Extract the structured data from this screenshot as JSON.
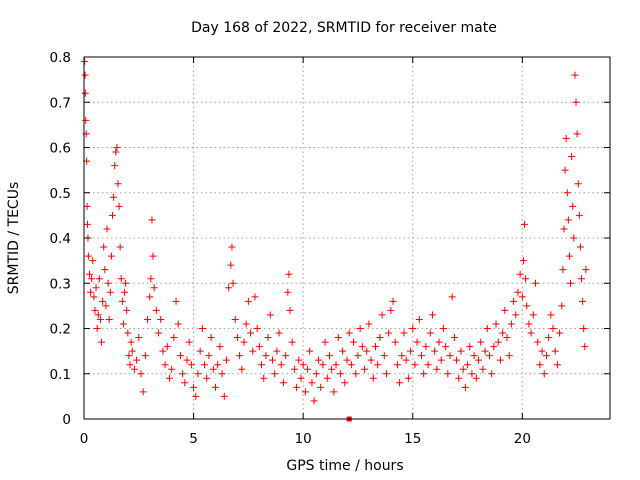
{
  "chart_data": {
    "type": "scatter",
    "title": "Day 168 of 2022, SRMTID for receiver mate",
    "xlabel": "GPS time / hours",
    "ylabel": "SRMTID / TECUs",
    "xlim": [
      0,
      24
    ],
    "ylim": [
      0,
      0.8
    ],
    "xticks": [
      0,
      5,
      10,
      15,
      20
    ],
    "yticks": [
      0,
      0.1,
      0.2,
      0.3,
      0.4,
      0.5,
      0.6,
      0.7,
      0.8
    ],
    "xtick_labels": [
      "0",
      "5",
      "10",
      "15",
      "20"
    ],
    "ytick_labels": [
      "0",
      "0.1",
      "0.2",
      "0.3",
      "0.4",
      "0.5",
      "0.6",
      "0.7",
      "0.8"
    ],
    "grid": true,
    "marker": "+",
    "color": "#ff0000",
    "series": [
      {
        "name": "SRMTID",
        "points": [
          [
            0.03,
            0.79
          ],
          [
            0.05,
            0.76
          ],
          [
            0.06,
            0.72
          ],
          [
            0.08,
            0.66
          ],
          [
            0.1,
            0.63
          ],
          [
            0.12,
            0.57
          ],
          [
            0.14,
            0.47
          ],
          [
            0.16,
            0.43
          ],
          [
            0.18,
            0.4
          ],
          [
            0.2,
            0.36
          ],
          [
            0.25,
            0.32
          ],
          [
            0.3,
            0.28
          ],
          [
            0.35,
            0.31
          ],
          [
            0.4,
            0.35
          ],
          [
            0.45,
            0.27
          ],
          [
            0.5,
            0.24
          ],
          [
            0.55,
            0.29
          ],
          [
            0.6,
            0.2
          ],
          [
            0.65,
            0.23
          ],
          [
            0.7,
            0.31
          ],
          [
            0.75,
            0.22
          ],
          [
            0.8,
            0.17
          ],
          [
            0.85,
            0.26
          ],
          [
            0.9,
            0.38
          ],
          [
            0.95,
            0.33
          ],
          [
            1.0,
            0.25
          ],
          [
            1.05,
            0.42
          ],
          [
            1.1,
            0.3
          ],
          [
            1.15,
            0.22
          ],
          [
            1.2,
            0.28
          ],
          [
            1.25,
            0.36
          ],
          [
            1.3,
            0.45
          ],
          [
            1.35,
            0.49
          ],
          [
            1.4,
            0.56
          ],
          [
            1.45,
            0.59
          ],
          [
            1.5,
            0.6
          ],
          [
            1.55,
            0.52
          ],
          [
            1.6,
            0.47
          ],
          [
            1.65,
            0.38
          ],
          [
            1.7,
            0.31
          ],
          [
            1.75,
            0.26
          ],
          [
            1.8,
            0.21
          ],
          [
            1.85,
            0.28
          ],
          [
            1.9,
            0.3
          ],
          [
            1.95,
            0.24
          ],
          [
            2.0,
            0.19
          ],
          [
            2.05,
            0.14
          ],
          [
            2.1,
            0.12
          ],
          [
            2.15,
            0.17
          ],
          [
            2.2,
            0.15
          ],
          [
            2.3,
            0.11
          ],
          [
            2.4,
            0.13
          ],
          [
            2.5,
            0.18
          ],
          [
            2.6,
            0.1
          ],
          [
            2.7,
            0.06
          ],
          [
            2.8,
            0.14
          ],
          [
            2.9,
            0.22
          ],
          [
            3.0,
            0.27
          ],
          [
            3.05,
            0.31
          ],
          [
            3.1,
            0.44
          ],
          [
            3.15,
            0.36
          ],
          [
            3.2,
            0.29
          ],
          [
            3.3,
            0.24
          ],
          [
            3.4,
            0.19
          ],
          [
            3.5,
            0.22
          ],
          [
            3.6,
            0.15
          ],
          [
            3.7,
            0.12
          ],
          [
            3.8,
            0.16
          ],
          [
            3.9,
            0.09
          ],
          [
            4.0,
            0.11
          ],
          [
            4.1,
            0.18
          ],
          [
            4.2,
            0.26
          ],
          [
            4.3,
            0.21
          ],
          [
            4.4,
            0.14
          ],
          [
            4.5,
            0.1
          ],
          [
            4.6,
            0.08
          ],
          [
            4.7,
            0.13
          ],
          [
            4.8,
            0.17
          ],
          [
            4.9,
            0.12
          ],
          [
            5.0,
            0.07
          ],
          [
            5.1,
            0.05
          ],
          [
            5.2,
            0.1
          ],
          [
            5.3,
            0.15
          ],
          [
            5.4,
            0.2
          ],
          [
            5.5,
            0.12
          ],
          [
            5.6,
            0.09
          ],
          [
            5.7,
            0.14
          ],
          [
            5.8,
            0.18
          ],
          [
            5.9,
            0.11
          ],
          [
            6.0,
            0.07
          ],
          [
            6.1,
            0.12
          ],
          [
            6.2,
            0.16
          ],
          [
            6.3,
            0.1
          ],
          [
            6.4,
            0.05
          ],
          [
            6.5,
            0.13
          ],
          [
            6.6,
            0.29
          ],
          [
            6.7,
            0.34
          ],
          [
            6.75,
            0.38
          ],
          [
            6.8,
            0.3
          ],
          [
            6.9,
            0.22
          ],
          [
            7.0,
            0.18
          ],
          [
            7.1,
            0.14
          ],
          [
            7.2,
            0.11
          ],
          [
            7.3,
            0.17
          ],
          [
            7.4,
            0.21
          ],
          [
            7.5,
            0.26
          ],
          [
            7.6,
            0.19
          ],
          [
            7.7,
            0.15
          ],
          [
            7.8,
            0.27
          ],
          [
            7.9,
            0.2
          ],
          [
            8.0,
            0.16
          ],
          [
            8.1,
            0.12
          ],
          [
            8.2,
            0.09
          ],
          [
            8.3,
            0.14
          ],
          [
            8.4,
            0.18
          ],
          [
            8.5,
            0.23
          ],
          [
            8.6,
            0.13
          ],
          [
            8.7,
            0.1
          ],
          [
            8.8,
            0.15
          ],
          [
            8.9,
            0.19
          ],
          [
            9.0,
            0.12
          ],
          [
            9.1,
            0.08
          ],
          [
            9.2,
            0.14
          ],
          [
            9.3,
            0.28
          ],
          [
            9.35,
            0.32
          ],
          [
            9.4,
            0.24
          ],
          [
            9.5,
            0.17
          ],
          [
            9.6,
            0.11
          ],
          [
            9.7,
            0.07
          ],
          [
            9.8,
            0.13
          ],
          [
            9.9,
            0.09
          ],
          [
            10.0,
            0.12
          ],
          [
            10.1,
            0.06
          ],
          [
            10.2,
            0.11
          ],
          [
            10.3,
            0.15
          ],
          [
            10.4,
            0.08
          ],
          [
            10.5,
            0.04
          ],
          [
            10.6,
            0.1
          ],
          [
            10.7,
            0.13
          ],
          [
            10.8,
            0.07
          ],
          [
            10.9,
            0.12
          ],
          [
            11.0,
            0.17
          ],
          [
            11.1,
            0.09
          ],
          [
            11.2,
            0.14
          ],
          [
            11.3,
            0.11
          ],
          [
            11.4,
            0.06
          ],
          [
            11.5,
            0.12
          ],
          [
            11.6,
            0.18
          ],
          [
            11.7,
            0.1
          ],
          [
            11.8,
            0.15
          ],
          [
            11.9,
            0.08
          ],
          [
            12.0,
            0.13
          ],
          [
            12.1,
            0.19
          ],
          [
            12.2,
            0.12
          ],
          [
            12.3,
            0.17
          ],
          [
            12.4,
            0.1
          ],
          [
            12.5,
            0.14
          ],
          [
            12.6,
            0.2
          ],
          [
            12.7,
            0.16
          ],
          [
            12.8,
            0.11
          ],
          [
            12.9,
            0.15
          ],
          [
            13.0,
            0.21
          ],
          [
            13.1,
            0.13
          ],
          [
            13.2,
            0.09
          ],
          [
            13.3,
            0.16
          ],
          [
            13.4,
            0.12
          ],
          [
            13.5,
            0.18
          ],
          [
            13.6,
            0.23
          ],
          [
            13.7,
            0.14
          ],
          [
            13.8,
            0.1
          ],
          [
            13.9,
            0.19
          ],
          [
            14.0,
            0.24
          ],
          [
            14.1,
            0.26
          ],
          [
            14.2,
            0.17
          ],
          [
            14.3,
            0.12
          ],
          [
            14.4,
            0.08
          ],
          [
            14.5,
            0.14
          ],
          [
            14.6,
            0.19
          ],
          [
            14.7,
            0.13
          ],
          [
            14.8,
            0.09
          ],
          [
            14.9,
            0.15
          ],
          [
            15.0,
            0.2
          ],
          [
            15.1,
            0.12
          ],
          [
            15.2,
            0.17
          ],
          [
            15.3,
            0.22
          ],
          [
            15.4,
            0.14
          ],
          [
            15.5,
            0.1
          ],
          [
            15.6,
            0.16
          ],
          [
            15.7,
            0.12
          ],
          [
            15.8,
            0.19
          ],
          [
            15.9,
            0.23
          ],
          [
            16.0,
            0.15
          ],
          [
            16.1,
            0.11
          ],
          [
            16.2,
            0.17
          ],
          [
            16.3,
            0.13
          ],
          [
            16.4,
            0.2
          ],
          [
            16.5,
            0.16
          ],
          [
            16.6,
            0.1
          ],
          [
            16.7,
            0.14
          ],
          [
            16.8,
            0.27
          ],
          [
            16.9,
            0.18
          ],
          [
            17.0,
            0.13
          ],
          [
            17.1,
            0.09
          ],
          [
            17.2,
            0.15
          ],
          [
            17.3,
            0.11
          ],
          [
            17.4,
            0.07
          ],
          [
            17.5,
            0.12
          ],
          [
            17.6,
            0.16
          ],
          [
            17.7,
            0.1
          ],
          [
            17.8,
            0.14
          ],
          [
            17.9,
            0.09
          ],
          [
            18.0,
            0.13
          ],
          [
            18.1,
            0.17
          ],
          [
            18.2,
            0.11
          ],
          [
            18.3,
            0.15
          ],
          [
            18.4,
            0.2
          ],
          [
            18.5,
            0.14
          ],
          [
            18.6,
            0.1
          ],
          [
            18.7,
            0.16
          ],
          [
            18.8,
            0.21
          ],
          [
            18.9,
            0.17
          ],
          [
            19.0,
            0.13
          ],
          [
            19.1,
            0.19
          ],
          [
            19.2,
            0.24
          ],
          [
            19.3,
            0.18
          ],
          [
            19.4,
            0.14
          ],
          [
            19.5,
            0.21
          ],
          [
            19.6,
            0.26
          ],
          [
            19.7,
            0.23
          ],
          [
            19.8,
            0.28
          ],
          [
            19.9,
            0.32
          ],
          [
            20.0,
            0.27
          ],
          [
            20.05,
            0.35
          ],
          [
            20.1,
            0.43
          ],
          [
            20.15,
            0.31
          ],
          [
            20.2,
            0.25
          ],
          [
            20.3,
            0.21
          ],
          [
            20.4,
            0.19
          ],
          [
            20.5,
            0.23
          ],
          [
            20.6,
            0.3
          ],
          [
            20.7,
            0.17
          ],
          [
            20.8,
            0.12
          ],
          [
            20.9,
            0.15
          ],
          [
            21.0,
            0.1
          ],
          [
            21.1,
            0.14
          ],
          [
            21.2,
            0.18
          ],
          [
            21.3,
            0.23
          ],
          [
            21.4,
            0.2
          ],
          [
            21.5,
            0.15
          ],
          [
            21.6,
            0.12
          ],
          [
            21.7,
            0.19
          ],
          [
            21.8,
            0.25
          ],
          [
            21.85,
            0.33
          ],
          [
            21.9,
            0.42
          ],
          [
            21.95,
            0.55
          ],
          [
            22.0,
            0.62
          ],
          [
            22.05,
            0.5
          ],
          [
            22.1,
            0.44
          ],
          [
            22.15,
            0.36
          ],
          [
            22.2,
            0.3
          ],
          [
            22.25,
            0.58
          ],
          [
            22.3,
            0.47
          ],
          [
            22.35,
            0.4
          ],
          [
            22.4,
            0.76
          ],
          [
            22.45,
            0.7
          ],
          [
            22.5,
            0.63
          ],
          [
            22.55,
            0.52
          ],
          [
            22.6,
            0.45
          ],
          [
            22.65,
            0.38
          ],
          [
            22.7,
            0.31
          ],
          [
            22.75,
            0.26
          ],
          [
            22.8,
            0.2
          ],
          [
            22.85,
            0.16
          ],
          [
            22.9,
            0.33
          ]
        ]
      },
      {
        "name": "square",
        "marker": "square",
        "points": [
          [
            12.1,
            0.0
          ]
        ]
      }
    ]
  }
}
